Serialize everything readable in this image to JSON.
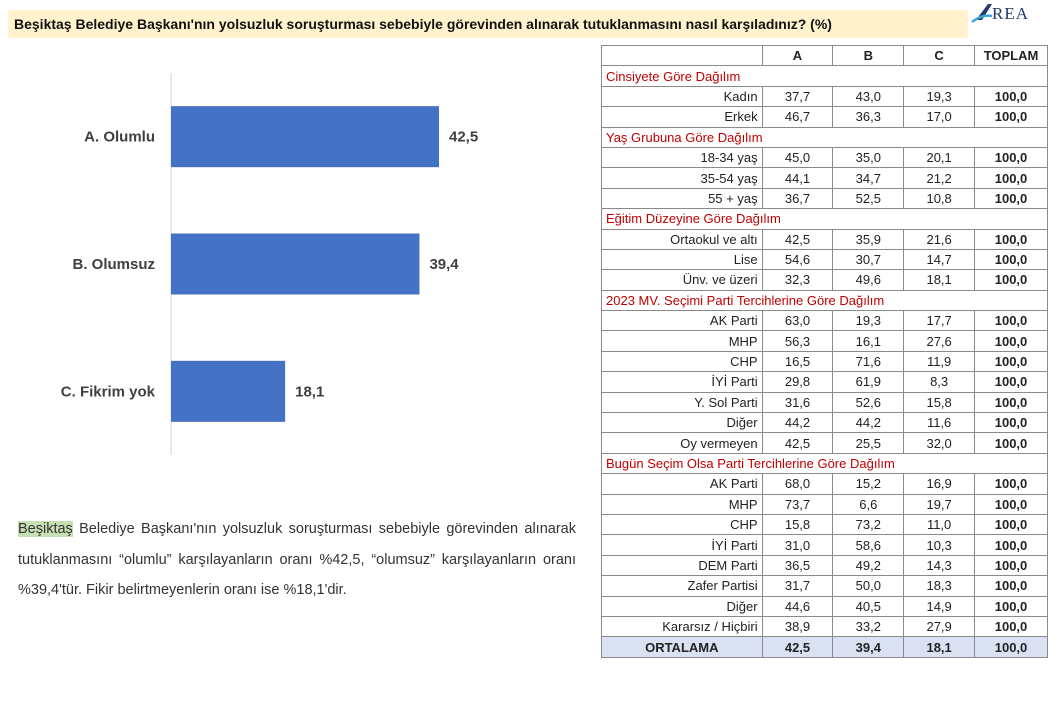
{
  "question": "Beşiktaş Belediye Başkanı'nın yolsuzluk soruşturması sebebiyle görevinden alınarak tutuklanmasını nasıl karşıladınız? (%)",
  "logo_text": "REA",
  "chart_data": {
    "type": "bar",
    "orientation": "horizontal",
    "categories": [
      "A. Olumlu",
      "B. Olumsuz",
      "C. Fikrim yok"
    ],
    "values": [
      42.5,
      39.4,
      18.1
    ],
    "value_labels": [
      "42,5",
      "39,4",
      "18,1"
    ],
    "bar_color": "#4472c4",
    "xlim": [
      0,
      50
    ],
    "grid": false,
    "legend": "none"
  },
  "summary": {
    "highlight": "Beşiktaş",
    "text": " Belediye Başkanı'nın yolsuzluk soruşturması sebebiyle görevinden alınarak tutuklanmasını “olumlu” karşılayanların oranı %42,5, “olumsuz” karşılayanların oranı %39,4'tür. Fikir belirtmeyenlerin oranı ise %18,1'dir."
  },
  "table": {
    "headers": [
      "",
      "A",
      "B",
      "C",
      "TOPLAM"
    ],
    "sections": [
      {
        "title": "Cinsiyete Göre Dağılım",
        "rows": [
          [
            "Kadın",
            "37,7",
            "43,0",
            "19,3",
            "100,0"
          ],
          [
            "Erkek",
            "46,7",
            "36,3",
            "17,0",
            "100,0"
          ]
        ]
      },
      {
        "title": "Yaş Grubuna Göre Dağılım",
        "rows": [
          [
            "18-34 yaş",
            "45,0",
            "35,0",
            "20,1",
            "100,0"
          ],
          [
            "35-54 yaş",
            "44,1",
            "34,7",
            "21,2",
            "100,0"
          ],
          [
            "55 + yaş",
            "36,7",
            "52,5",
            "10,8",
            "100,0"
          ]
        ]
      },
      {
        "title": "Eğitim Düzeyine Göre Dağılım",
        "rows": [
          [
            "Ortaokul ve altı",
            "42,5",
            "35,9",
            "21,6",
            "100,0"
          ],
          [
            "Lise",
            "54,6",
            "30,7",
            "14,7",
            "100,0"
          ],
          [
            "Ünv. ve üzeri",
            "32,3",
            "49,6",
            "18,1",
            "100,0"
          ]
        ]
      },
      {
        "title": "2023 MV. Seçimi Parti Tercihlerine Göre Dağılım",
        "rows": [
          [
            "AK Parti",
            "63,0",
            "19,3",
            "17,7",
            "100,0"
          ],
          [
            "MHP",
            "56,3",
            "16,1",
            "27,6",
            "100,0"
          ],
          [
            "CHP",
            "16,5",
            "71,6",
            "11,9",
            "100,0"
          ],
          [
            "İYİ Parti",
            "29,8",
            "61,9",
            "8,3",
            "100,0"
          ],
          [
            "Y. Sol Parti",
            "31,6",
            "52,6",
            "15,8",
            "100,0"
          ],
          [
            "Diğer",
            "44,2",
            "44,2",
            "11,6",
            "100,0"
          ],
          [
            "Oy vermeyen",
            "42,5",
            "25,5",
            "32,0",
            "100,0"
          ]
        ]
      },
      {
        "title": "Bugün Seçim Olsa Parti Tercihlerine Göre Dağılım",
        "rows": [
          [
            "AK Parti",
            "68,0",
            "15,2",
            "16,9",
            "100,0"
          ],
          [
            "MHP",
            "73,7",
            "6,6",
            "19,7",
            "100,0"
          ],
          [
            "CHP",
            "15,8",
            "73,2",
            "11,0",
            "100,0"
          ],
          [
            "İYİ Parti",
            "31,0",
            "58,6",
            "10,3",
            "100,0"
          ],
          [
            "DEM Parti",
            "36,5",
            "49,2",
            "14,3",
            "100,0"
          ],
          [
            "Zafer Partisi",
            "31,7",
            "50,0",
            "18,3",
            "100,0"
          ],
          [
            "Diğer",
            "44,6",
            "40,5",
            "14,9",
            "100,0"
          ],
          [
            "Kararsız / Hiçbiri",
            "38,9",
            "33,2",
            "27,9",
            "100,0"
          ]
        ]
      }
    ],
    "average": [
      "ORTALAMA",
      "42,5",
      "39,4",
      "18,1",
      "100,0"
    ]
  }
}
